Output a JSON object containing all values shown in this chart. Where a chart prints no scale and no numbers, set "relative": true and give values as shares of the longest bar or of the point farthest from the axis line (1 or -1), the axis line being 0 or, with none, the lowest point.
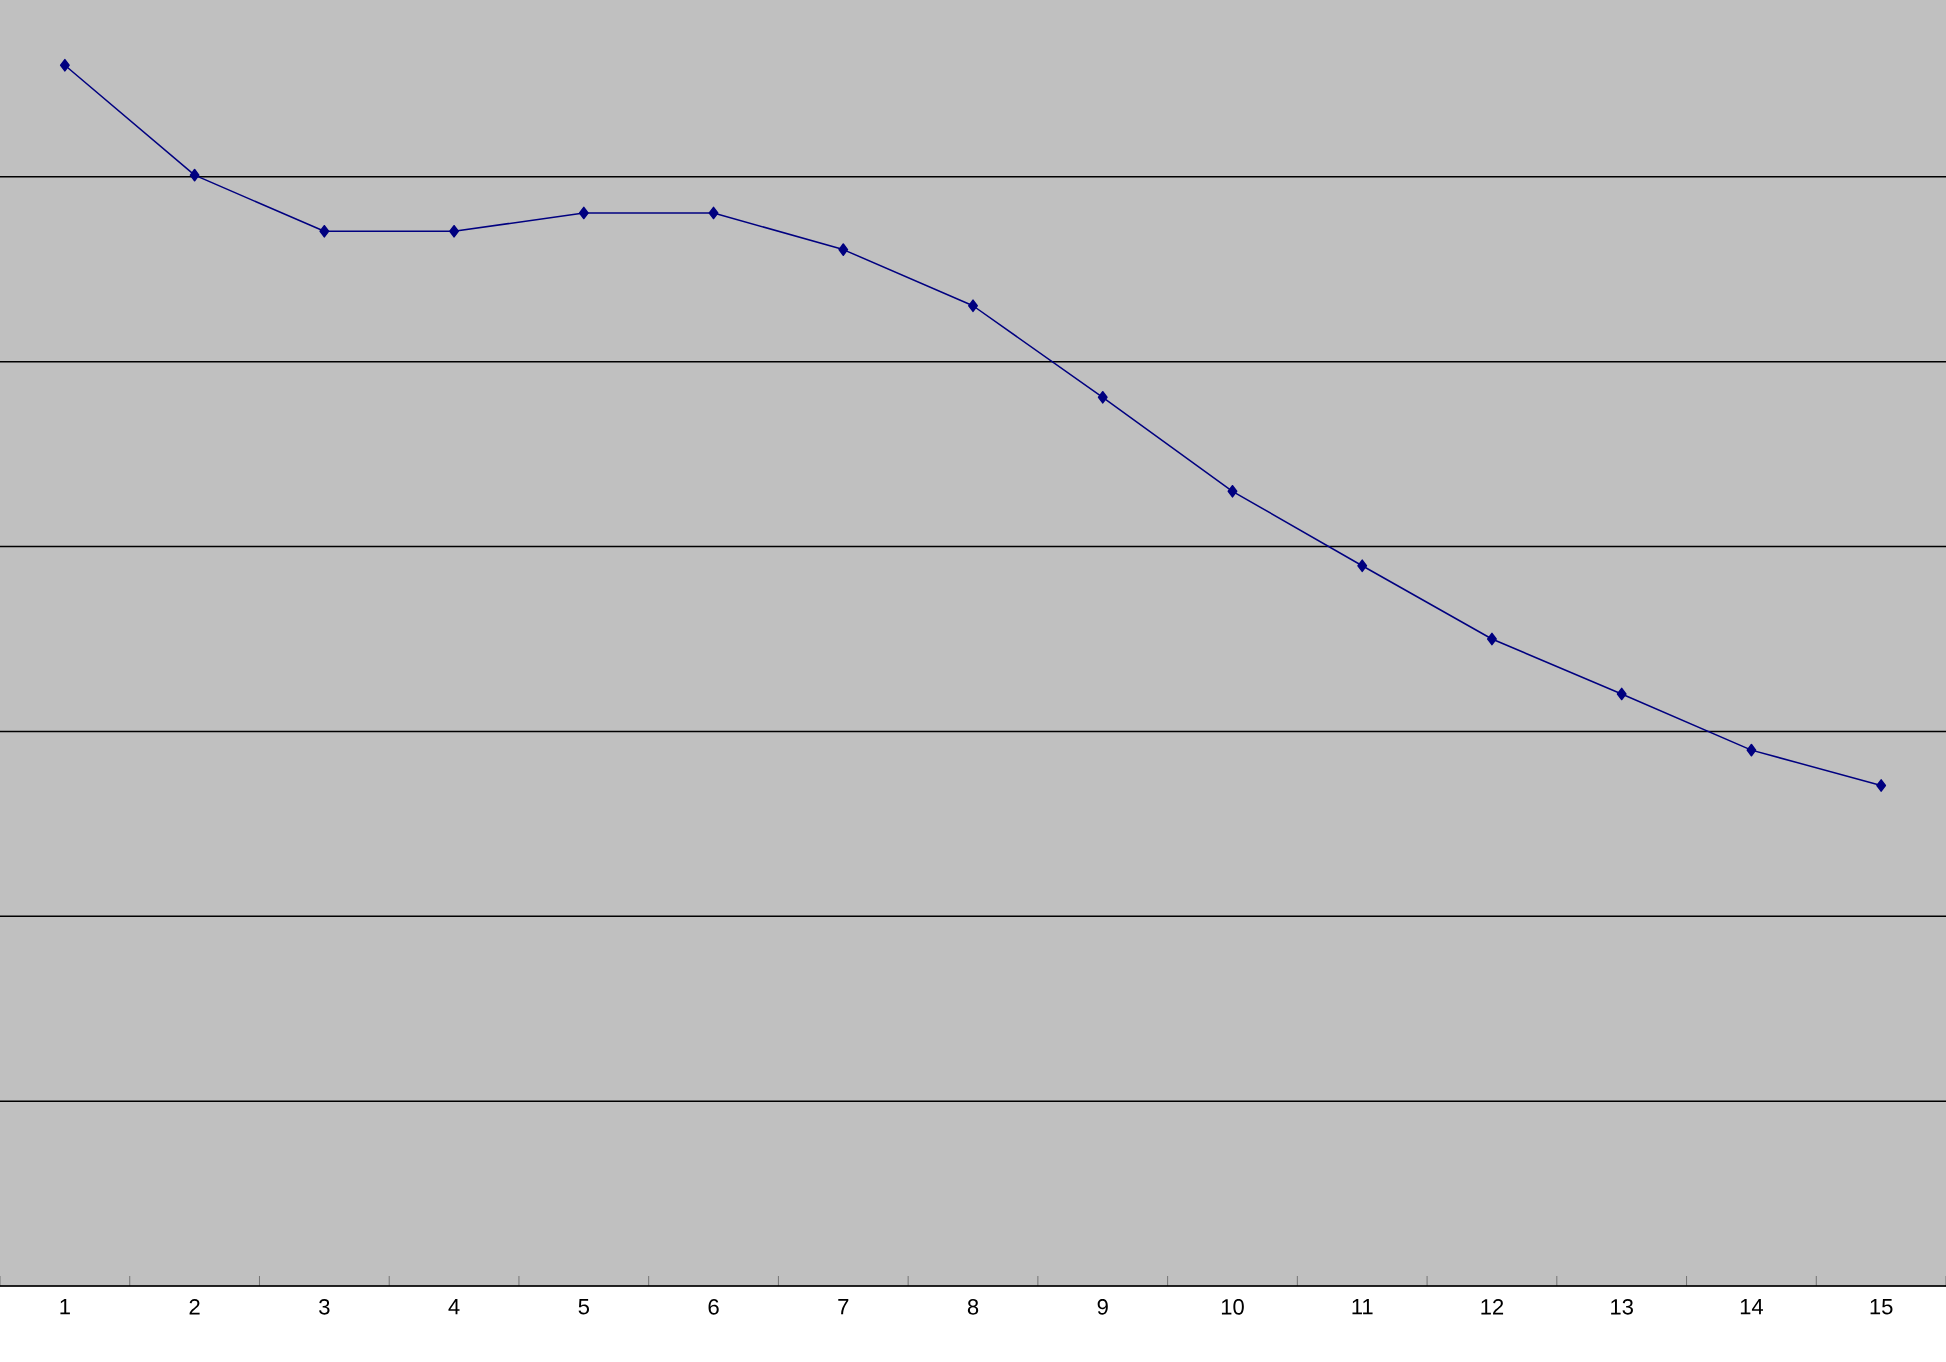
{
  "chart_data": {
    "type": "line",
    "relative": true,
    "categories": [
      "1",
      "2",
      "3",
      "4",
      "5",
      "6",
      "7",
      "8",
      "9",
      "10",
      "11",
      "12",
      "13",
      "14",
      "15"
    ],
    "series": [
      {
        "color": "#000080",
        "values": [
          1,
          0.91,
          0.864,
          0.864,
          0.879,
          0.879,
          0.849,
          0.803,
          0.728,
          0.651,
          0.59,
          0.53,
          0.485,
          0.439,
          0.41
        ]
      }
    ],
    "marker": "diamond",
    "line_style": "solid",
    "grid": "y"
  }
}
